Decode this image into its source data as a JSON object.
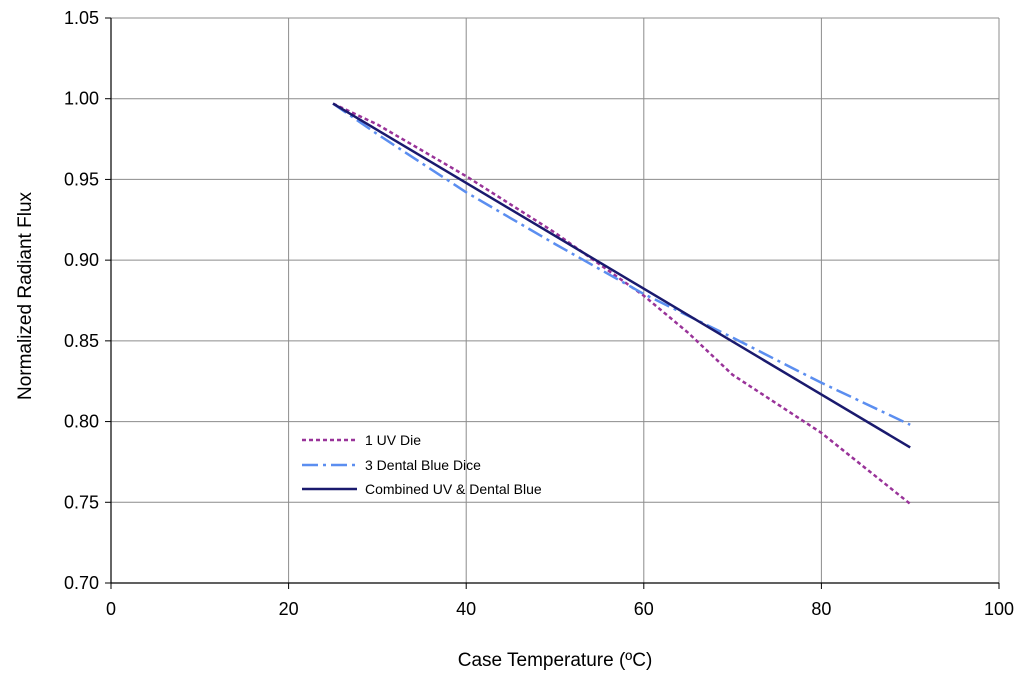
{
  "chart_data": {
    "type": "line",
    "title": "",
    "xlabel": "Case Temperature (ºC)",
    "ylabel": "Normalized Radiant Flux",
    "xlim": [
      0,
      100
    ],
    "ylim": [
      0.7,
      1.05
    ],
    "x_ticks": [
      0,
      20,
      40,
      60,
      80,
      100
    ],
    "x_tick_labels": [
      "0",
      "20",
      "40",
      "60",
      "80",
      "100"
    ],
    "y_ticks": [
      0.7,
      0.75,
      0.8,
      0.85,
      0.9,
      0.95,
      1.0,
      1.05
    ],
    "y_tick_labels": [
      "0.70",
      "0.75",
      "0.80",
      "0.85",
      "0.90",
      "0.95",
      "1.00",
      "1.05"
    ],
    "grid": true,
    "legend_position": "lower-left (inside plot)",
    "series": [
      {
        "name": "1 UV Die",
        "color": "#993399",
        "style": "dotted",
        "x": [
          25,
          30,
          40,
          50,
          60,
          65,
          70,
          80,
          90
        ],
        "y": [
          0.997,
          0.984,
          0.952,
          0.917,
          0.878,
          0.855,
          0.829,
          0.793,
          0.749
        ]
      },
      {
        "name": "3 Dental Blue Dice",
        "color": "#5b8ef0",
        "style": "dashdot",
        "x": [
          25,
          30,
          40,
          50,
          60,
          70,
          80,
          90
        ],
        "y": [
          0.997,
          0.978,
          0.942,
          0.91,
          0.879,
          0.852,
          0.824,
          0.798
        ]
      },
      {
        "name": "Combined UV & Dental Blue",
        "color": "#1a1a6e",
        "style": "solid",
        "x": [
          25,
          90
        ],
        "y": [
          0.997,
          0.784
        ]
      }
    ]
  }
}
